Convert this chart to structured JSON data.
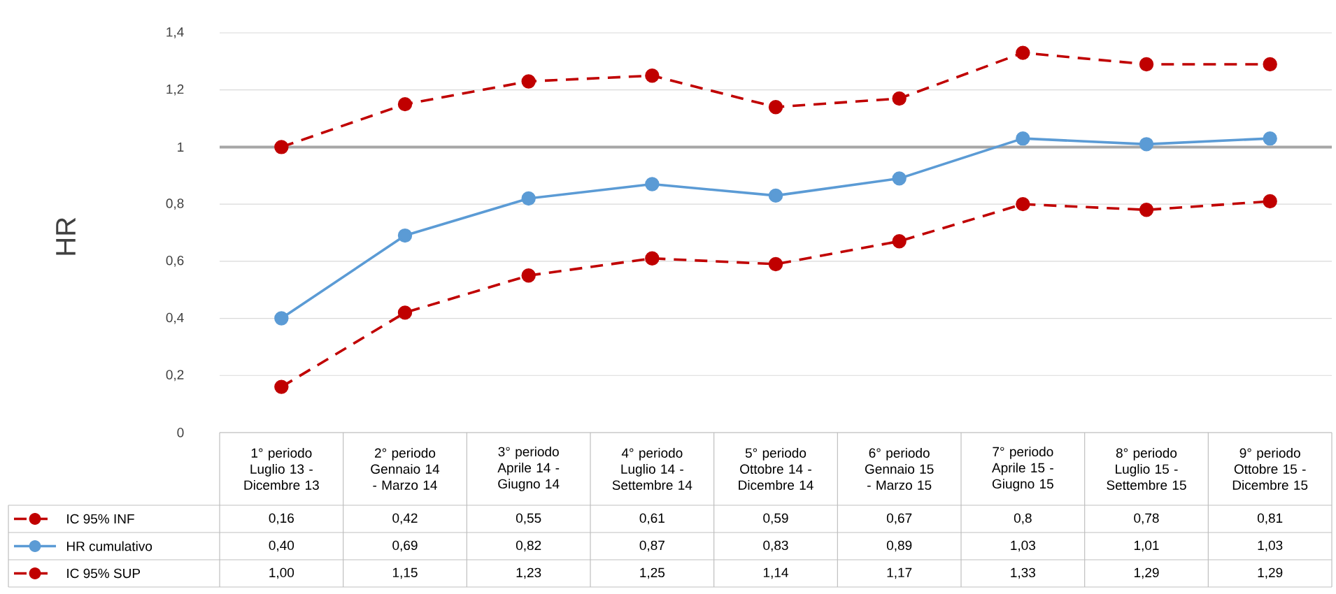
{
  "chart_data": {
    "type": "line",
    "ylabel": "HR",
    "categories": [
      "1° periodo Luglio 13 - Dicembre 13",
      "2° periodo Gennaio 14 - Marzo 14",
      "3° periodo Aprile 14 - Giugno 14",
      "4° periodo Luglio 14 - Settembre 14",
      "5° periodo Ottobre 14 - Dicembre 14",
      "6° periodo Gennaio 15 - Marzo 15",
      "7° periodo Aprile 15 - Giugno 15",
      "8° periodo Luglio 15 - Settembre 15",
      "9° periodo Ottobre 15 - Dicembre 15"
    ],
    "series": [
      {
        "name": "IC 95% INF",
        "color": "#c00000",
        "line_style": "dashed",
        "values": [
          0.16,
          0.42,
          0.55,
          0.61,
          0.59,
          0.67,
          0.8,
          0.78,
          0.81
        ],
        "value_labels": [
          "0,16",
          "0,42",
          "0,55",
          "0,61",
          "0,59",
          "0,67",
          "0,8",
          "0,78",
          "0,81"
        ]
      },
      {
        "name": "HR cumulativo",
        "color": "#5b9bd5",
        "line_style": "solid",
        "values": [
          0.4,
          0.69,
          0.82,
          0.87,
          0.83,
          0.89,
          1.03,
          1.01,
          1.03
        ],
        "value_labels": [
          "0,40",
          "0,69",
          "0,82",
          "0,87",
          "0,83",
          "0,89",
          "1,03",
          "1,01",
          "1,03"
        ]
      },
      {
        "name": "IC 95% SUP",
        "color": "#c00000",
        "line_style": "dashed",
        "values": [
          1.0,
          1.15,
          1.23,
          1.25,
          1.14,
          1.17,
          1.33,
          1.29,
          1.29
        ],
        "value_labels": [
          "1,00",
          "1,15",
          "1,23",
          "1,25",
          "1,14",
          "1,17",
          "1,33",
          "1,29",
          "1,29"
        ]
      }
    ],
    "ylim": [
      0,
      1.4
    ],
    "yticks": [
      0,
      {
        "value": 0.2,
        "label": "0,2"
      },
      {
        "value": 0.4,
        "label": "0,4"
      },
      {
        "value": 0.6,
        "label": "0,6"
      },
      {
        "value": 0.8,
        "label": "0,8"
      },
      1,
      {
        "value": 1.2,
        "label": "1,2"
      },
      {
        "value": 1.4,
        "label": "1,4"
      }
    ],
    "ref_lines": [
      {
        "axis": "y",
        "value": 1,
        "color": "#a6a6a6"
      }
    ],
    "grid": "y",
    "legend": "bottom left",
    "marker": "circle"
  }
}
